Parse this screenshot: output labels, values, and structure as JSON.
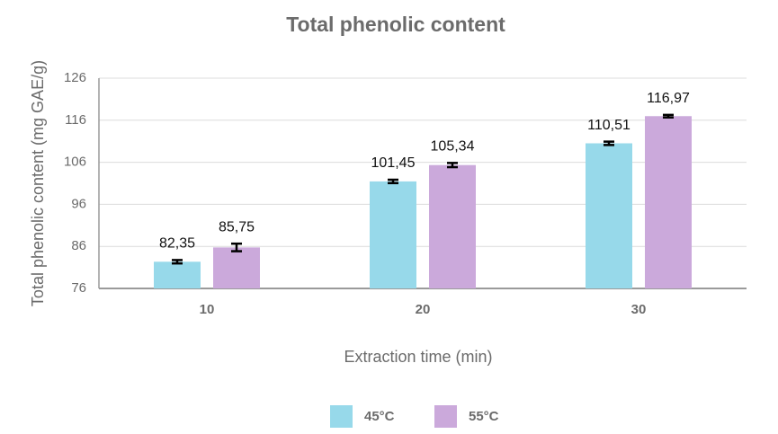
{
  "chart_data": {
    "type": "bar",
    "title": "Total phenolic content",
    "x_label": "Extraction time (min)",
    "y_label": "Total phenolic content (mg GAE/g)",
    "categories": [
      "10",
      "20",
      "30"
    ],
    "series": [
      {
        "name": "45°C",
        "color": "#97d9ea",
        "values": [
          82.35,
          101.45,
          110.51
        ],
        "value_labels": [
          "82,35",
          "101,45",
          "110,51"
        ],
        "errors": [
          0.4,
          0.4,
          0.4
        ]
      },
      {
        "name": "55°C",
        "color": "#cba9db",
        "values": [
          85.75,
          105.34,
          116.97
        ],
        "value_labels": [
          "85,75",
          "105,34",
          "116,97"
        ],
        "errors": [
          0.9,
          0.5,
          0.3
        ]
      }
    ],
    "ylim": [
      76,
      126
    ],
    "yticks": [
      76,
      86,
      96,
      106,
      116,
      126
    ],
    "grid": true,
    "legend": "bottom"
  }
}
